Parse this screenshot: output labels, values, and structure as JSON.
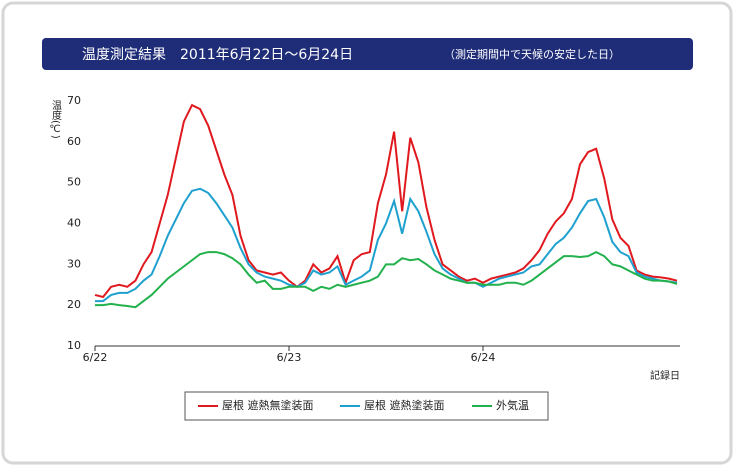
{
  "chart_data": {
    "type": "line",
    "title": "温度測定結果　2011年6月22日～6月24日",
    "subtitle": "（測定期間中で天候の安定した日）",
    "y_label": "温度(℃)",
    "x_label": "記録日",
    "categories": [
      "6/22",
      null,
      null,
      null,
      null,
      null,
      null,
      null,
      null,
      null,
      null,
      null,
      null,
      null,
      null,
      null,
      null,
      null,
      null,
      null,
      null,
      null,
      null,
      null,
      "6/23",
      null,
      null,
      null,
      null,
      null,
      null,
      null,
      null,
      null,
      null,
      null,
      null,
      null,
      null,
      null,
      null,
      null,
      null,
      null,
      null,
      null,
      null,
      null,
      "6/24",
      null,
      null,
      null,
      null,
      null,
      null,
      null,
      null,
      null,
      null,
      null,
      null,
      null,
      null,
      null,
      null,
      null,
      null,
      null,
      null,
      null,
      null,
      null,
      null
    ],
    "series": [
      {
        "name": "屋根 遮熱無塗装面",
        "color": "#e0191f",
        "values": [
          22.5,
          22,
          24.5,
          25,
          24.5,
          26,
          30,
          33,
          40,
          47,
          56,
          65,
          69,
          68,
          64,
          58,
          52,
          47,
          37,
          31,
          28.5,
          28,
          27.5,
          28,
          26,
          24.5,
          26,
          30,
          28,
          29,
          32,
          25.5,
          31,
          32.5,
          33,
          45,
          52,
          62.5,
          43,
          61,
          55,
          44,
          36,
          30,
          28.5,
          27,
          26,
          26.5,
          25.5,
          26.5,
          27,
          27.5,
          28,
          29,
          31,
          33.5,
          37.5,
          40.5,
          42.5,
          46,
          54.5,
          57.5,
          58.3,
          51,
          41,
          36.5,
          34.5,
          28.5,
          27.5,
          27,
          26.8,
          26.5,
          26
        ]
      },
      {
        "name": "屋根 遮熱塗装面",
        "color": "#1ea0cf",
        "values": [
          21,
          21,
          22.5,
          23,
          23,
          24,
          26,
          27.5,
          32,
          37,
          41,
          45,
          48,
          48.5,
          47.5,
          45,
          42,
          39,
          34,
          30,
          28,
          27,
          26.5,
          26,
          25,
          24.5,
          25.5,
          28.5,
          27.5,
          28,
          29.5,
          25,
          26,
          27,
          28.5,
          36,
          40,
          45.5,
          37.5,
          46,
          43,
          38,
          32.5,
          29,
          27.5,
          26.5,
          25.5,
          25.5,
          24.5,
          25.5,
          26.5,
          27,
          27.5,
          28,
          29.5,
          30,
          32.5,
          35,
          36.5,
          39,
          42.5,
          45.5,
          46,
          41.5,
          35.5,
          33,
          32,
          28,
          27,
          26.5,
          26,
          25.8,
          25.5
        ]
      },
      {
        "name": "外気温",
        "color": "#22b14c",
        "values": [
          20,
          20,
          20.3,
          20,
          19.8,
          19.5,
          21,
          22.5,
          24.5,
          26.5,
          28,
          29.5,
          31,
          32.5,
          33,
          33,
          32.5,
          31.5,
          30,
          27.5,
          25.5,
          26,
          24,
          24,
          24.5,
          24.5,
          24.5,
          23.5,
          24.5,
          24,
          25,
          24.5,
          25,
          25.5,
          26,
          27,
          30,
          30,
          31.5,
          31,
          31.3,
          30,
          28.5,
          27.5,
          26.5,
          26,
          25.5,
          25.5,
          25,
          25,
          25,
          25.5,
          25.5,
          25,
          26,
          27.5,
          29,
          30.5,
          32,
          32,
          31.8,
          32,
          33,
          32,
          30,
          29.5,
          28.5,
          27.5,
          26.5,
          26,
          26,
          25.8,
          25.2
        ]
      }
    ],
    "ylim": [
      10,
      70
    ],
    "yticks": [
      10,
      20,
      30,
      40,
      50,
      60,
      70
    ],
    "grid": false
  }
}
